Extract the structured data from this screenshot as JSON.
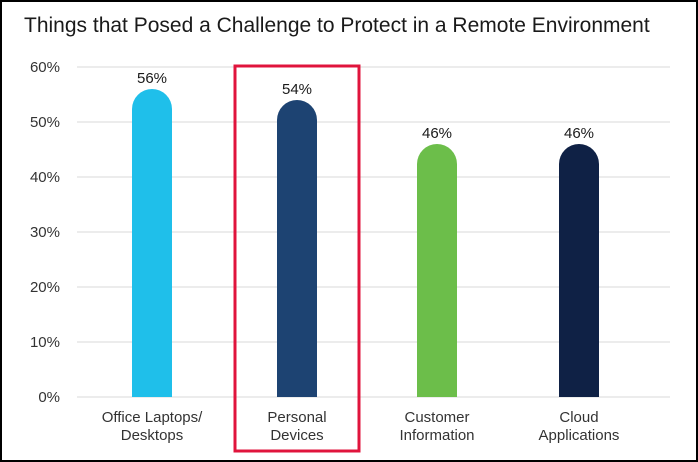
{
  "chart_data": {
    "type": "bar",
    "title": "Things that Posed a Challenge to Protect in a Remote Environment",
    "categories": [
      [
        "Office Laptops/",
        "Desktops"
      ],
      [
        "Personal",
        "Devices"
      ],
      [
        "Customer",
        "Information"
      ],
      [
        "Cloud",
        "Applications"
      ]
    ],
    "values": [
      56,
      54,
      46,
      46
    ],
    "data_labels": [
      "56%",
      "54%",
      "46%",
      "46%"
    ],
    "bar_colors": [
      "#1fbfea",
      "#1d4372",
      "#6cbe4a",
      "#0f2145"
    ],
    "ylim": [
      0,
      60
    ],
    "yticks": [
      0,
      10,
      20,
      30,
      40,
      50,
      60
    ],
    "ytick_labels": [
      "0%",
      "10%",
      "20%",
      "30%",
      "40%",
      "50%",
      "60%"
    ],
    "grid": true,
    "grid_color": "#d9d9d9",
    "highlight": {
      "category_index": 1,
      "color": "#e0143c"
    }
  }
}
